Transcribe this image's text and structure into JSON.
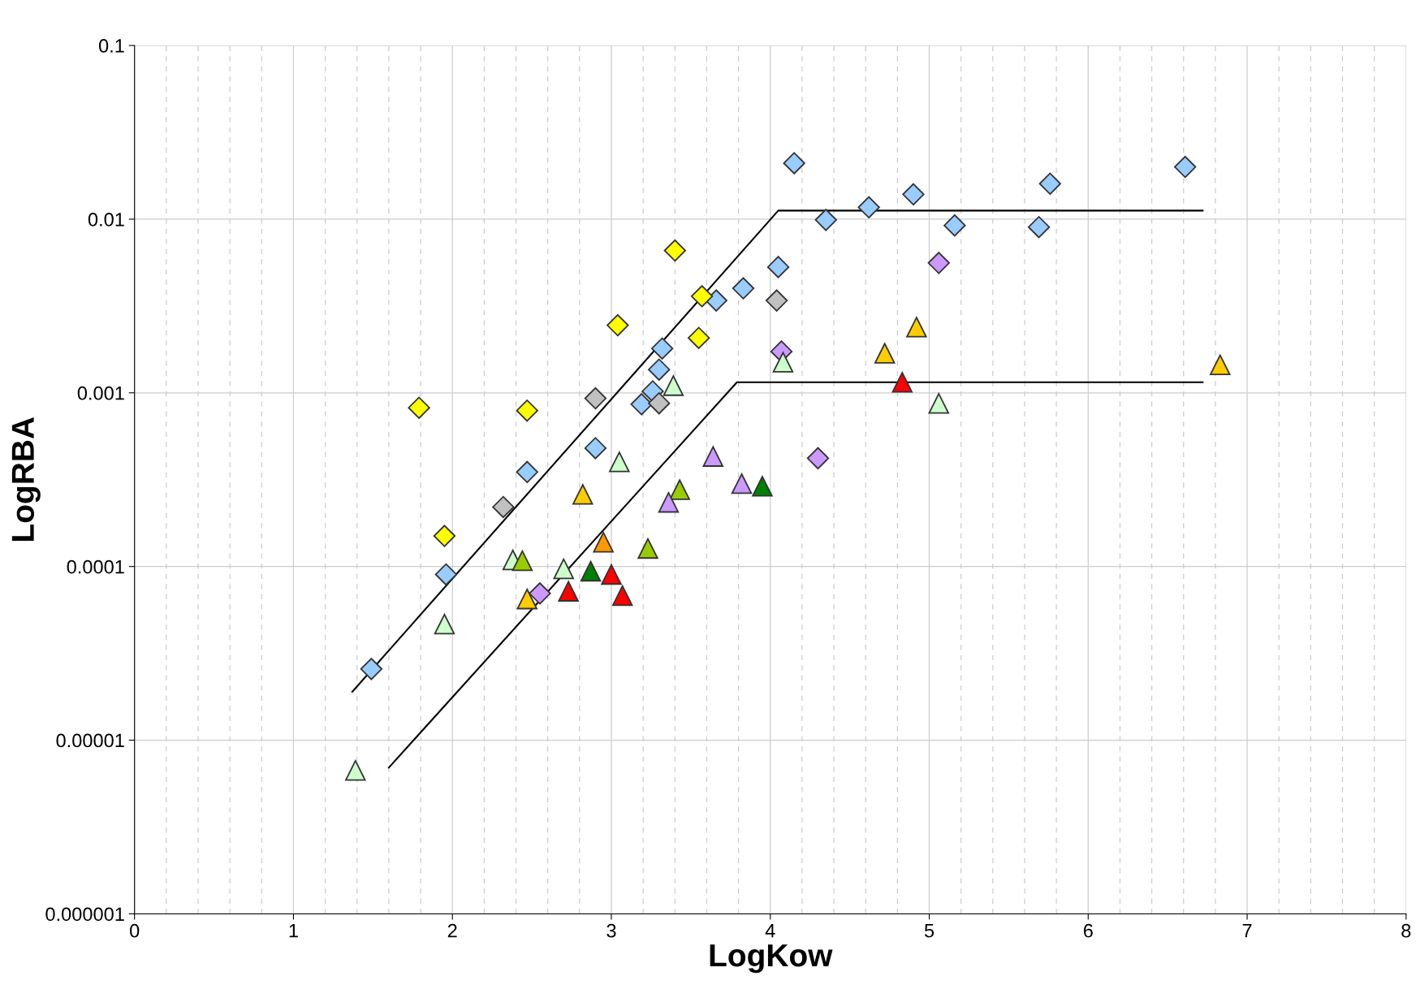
{
  "chart_data": {
    "type": "scatter",
    "xlabel": "LogKow",
    "ylabel": "LogRBA",
    "log": "y",
    "grid": true,
    "xlim": [
      0,
      8
    ],
    "ylim": [
      1e-06,
      0.1
    ],
    "xticks": [
      0,
      {
        "value": 0.2,
        "label": null
      },
      {
        "value": 0.4,
        "label": null
      },
      {
        "value": 0.6,
        "label": null
      },
      {
        "value": 0.8,
        "label": null
      },
      1,
      {
        "value": 1.2,
        "label": null
      },
      {
        "value": 1.4,
        "label": null
      },
      {
        "value": 1.6,
        "label": null
      },
      {
        "value": 1.8,
        "label": null
      },
      2,
      {
        "value": 2.2,
        "label": null
      },
      {
        "value": 2.4,
        "label": null
      },
      {
        "value": 2.6,
        "label": null
      },
      {
        "value": 2.8,
        "label": null
      },
      3,
      {
        "value": 3.2,
        "label": null
      },
      {
        "value": 3.4,
        "label": null
      },
      {
        "value": 3.6,
        "label": null
      },
      {
        "value": 3.8,
        "label": null
      },
      4,
      {
        "value": 4.2,
        "label": null
      },
      {
        "value": 4.4,
        "label": null
      },
      {
        "value": 4.6,
        "label": null
      },
      {
        "value": 4.8,
        "label": null
      },
      5,
      {
        "value": 5.2,
        "label": null
      },
      {
        "value": 5.4,
        "label": null
      },
      {
        "value": 5.6,
        "label": null
      },
      {
        "value": 5.8,
        "label": null
      },
      6,
      {
        "value": 6.2,
        "label": null
      },
      {
        "value": 6.4,
        "label": null
      },
      {
        "value": 6.6,
        "label": null
      },
      {
        "value": 6.8,
        "label": null
      },
      7,
      {
        "value": 7.2,
        "label": null
      },
      {
        "value": 7.4,
        "label": null
      },
      {
        "value": 7.6,
        "label": null
      },
      {
        "value": 7.8,
        "label": null
      },
      8
    ],
    "yticks": [
      {
        "value": 1e-06,
        "label": "0.000001"
      },
      {
        "value": 1e-05,
        "label": "0.00001"
      },
      {
        "value": 0.0001,
        "label": "0.0001"
      },
      {
        "value": 0.001,
        "label": "0.001"
      },
      {
        "value": 0.01,
        "label": "0.01"
      },
      0.1
    ],
    "series": [
      {
        "type": "line",
        "color": "#000000",
        "marker": "none",
        "line_style": "solid",
        "x": [
          1.37,
          4.05,
          6.72
        ],
        "values": [
          1.9e-05,
          0.0112,
          0.0112
        ]
      },
      {
        "type": "line",
        "color": "#000000",
        "marker": "none",
        "line_style": "solid",
        "x": [
          1.6,
          3.79,
          6.72
        ],
        "values": [
          6.95e-06,
          0.00115,
          0.00115
        ]
      },
      {
        "color": "#99ccff",
        "marker": "diamond",
        "x": [
          1.49,
          1.96,
          2.47,
          2.9,
          3.19,
          3.26,
          3.3,
          3.32,
          3.66,
          3.83,
          4.05,
          4.15,
          4.35,
          4.62,
          4.9,
          5.16,
          5.69,
          5.76,
          6.61
        ],
        "values": [
          2.57e-05,
          9e-05,
          0.00035,
          0.00048,
          0.00086,
          0.00102,
          0.00136,
          0.0018,
          0.0034,
          0.004,
          0.0053,
          0.021,
          0.0099,
          0.0117,
          0.0139,
          0.0092,
          0.009,
          0.016,
          0.02
        ]
      },
      {
        "color": "#ffff00",
        "marker": "diamond",
        "x": [
          1.79,
          1.95,
          2.47,
          3.04,
          3.4,
          3.57,
          3.55
        ],
        "values": [
          0.00082,
          0.00015,
          0.00079,
          0.00245,
          0.0066,
          0.0036,
          0.00207
        ]
      },
      {
        "color": "#c0c0c0",
        "marker": "diamond",
        "x": [
          2.32,
          2.9,
          3.3,
          4.04
        ],
        "values": [
          0.00022,
          0.00093,
          0.00087,
          0.0034
        ]
      },
      {
        "color": "#cc99ff",
        "marker": "diamond",
        "x": [
          2.55,
          4.07,
          4.3,
          5.06
        ],
        "values": [
          7e-05,
          0.00173,
          0.00042,
          0.0056
        ]
      },
      {
        "color": "#ccffcc",
        "marker": "triangle",
        "x": [
          1.39,
          1.95,
          2.38,
          2.7,
          3.05,
          3.39,
          4.08,
          5.06
        ],
        "values": [
          6.7e-06,
          4.66e-05,
          0.000109,
          9.7e-05,
          0.0004,
          0.0011,
          0.0015,
          0.00087
        ]
      },
      {
        "color": "#ffcc00",
        "marker": "triangle",
        "x": [
          2.47,
          2.82,
          4.72,
          4.92,
          6.83
        ],
        "values": [
          6.5e-05,
          0.00026,
          0.00169,
          0.00239,
          0.00145
        ]
      },
      {
        "color": "#ff9900",
        "marker": "triangle",
        "x": [
          2.95
        ],
        "values": [
          0.000138
        ]
      },
      {
        "color": "#99cc00",
        "marker": "triangle",
        "x": [
          2.44,
          3.23,
          3.43
        ],
        "values": [
          0.000108,
          0.000127,
          0.000277
        ]
      },
      {
        "color": "#008000",
        "marker": "triangle",
        "x": [
          2.87,
          3.95
        ],
        "values": [
          9.4e-05,
          0.00029
        ]
      },
      {
        "color": "#ff0000",
        "marker": "triangle",
        "x": [
          2.73,
          3.0,
          3.07,
          4.83
        ],
        "values": [
          7.2e-05,
          9e-05,
          6.8e-05,
          0.00115
        ]
      },
      {
        "color": "#cc99ff",
        "marker": "triangle",
        "x": [
          3.36,
          3.64,
          3.82
        ],
        "values": [
          0.000234,
          0.00043,
          0.0003
        ]
      }
    ]
  }
}
